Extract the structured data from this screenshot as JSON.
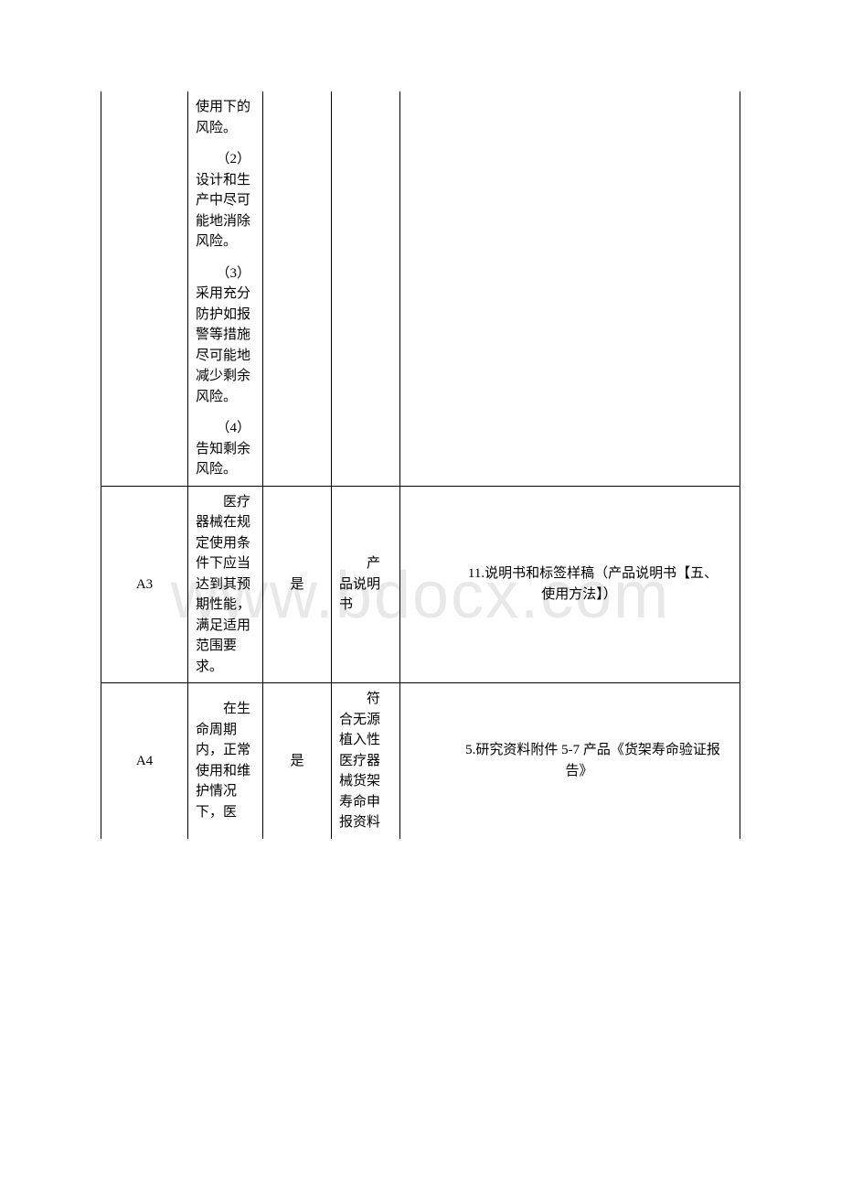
{
  "watermark": "www.bdocx.com",
  "table": {
    "rows": [
      {
        "col1": "",
        "col2_paragraphs": [
          "使用下的风险。",
          "　　（2）设计和生产中尽可能地消除风险。",
          "　　（3）采用充分防护如报警等措施尽可能地减少剩余风险。",
          "　　（4）告知剩余风险。"
        ],
        "col3": "",
        "col4": "",
        "col5": "",
        "top_continues": true,
        "bottom_continues": false
      },
      {
        "col1": "A3",
        "col2_paragraphs": [
          "　　医疗器械在规定使用条件下应当达到其预期性能，满足适用范围要求。"
        ],
        "col3": "是",
        "col4": "　　产品说明书",
        "col5": "　　11.说明书和标签样稿（产品说明书【五、使用方法】）",
        "top_continues": false,
        "bottom_continues": false
      },
      {
        "col1": "A4",
        "col2_paragraphs": [
          "　　在生命周期内，正常使用和维护情况下，医"
        ],
        "col3": "是",
        "col4": "　　符合无源植入性医疗器械货架寿命申报资料",
        "col5": "　　5.研究资料附件 5-7 产品《货架寿命验证报告》",
        "top_continues": false,
        "bottom_continues": true
      }
    ]
  }
}
